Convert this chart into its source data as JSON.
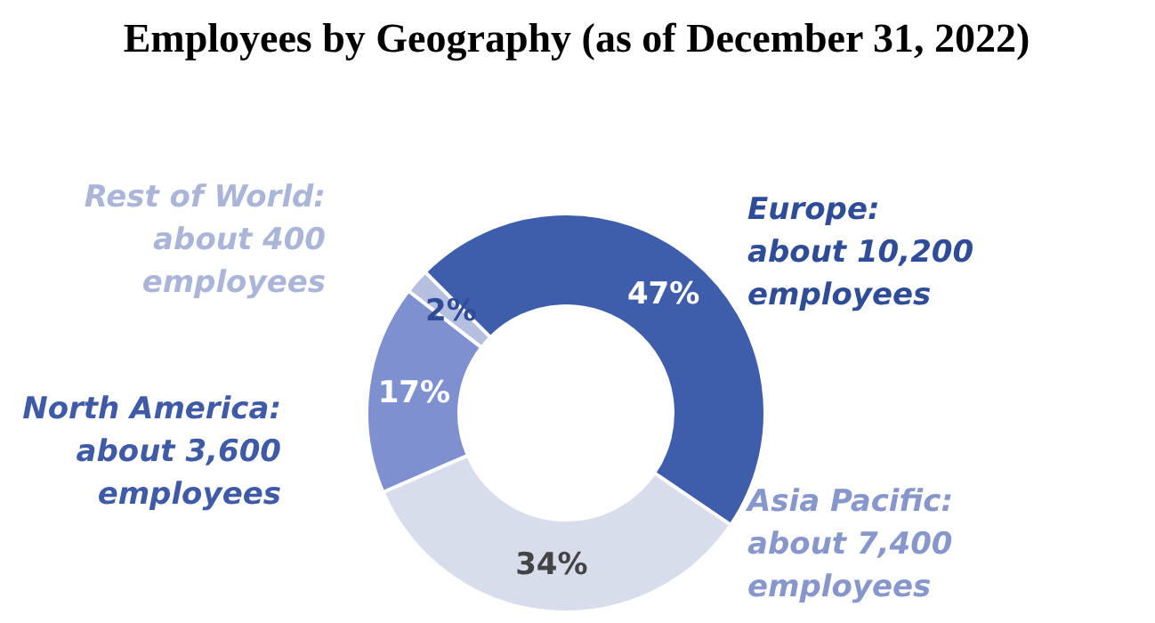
{
  "chart_data": {
    "type": "donut",
    "title": "Employees by Geography (as of December 31, 2022)",
    "categories": [
      "Europe:\nabout 10,200\nemployees",
      "Asia Pacific:\nabout 7,400\nemployees",
      "North America:\nabout 3,600\nemployees",
      "Rest of World:\nabout 400\nemployees"
    ],
    "values": [
      47,
      34,
      17,
      2
    ],
    "value_labels": [
      "47%",
      "34%",
      "17%",
      "2%"
    ],
    "colors": [
      "#3e5daa",
      "#d8ddeb",
      "#7e90cf",
      "#b5bfdf"
    ]
  }
}
